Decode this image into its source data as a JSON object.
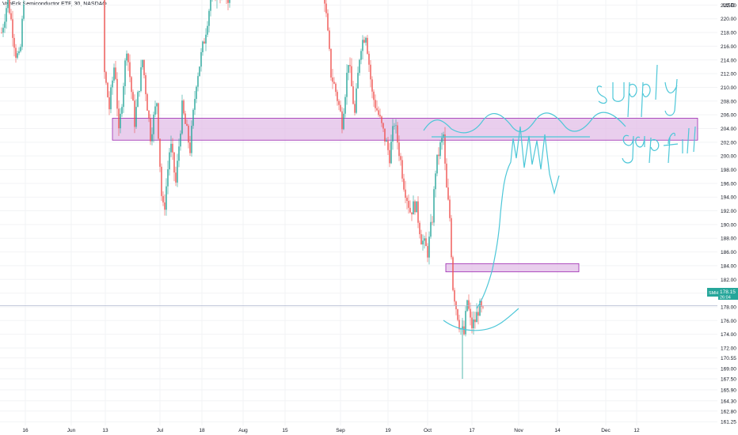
{
  "header": {
    "title": "VanEck Semiconductor ETF, 30, NASDAQ"
  },
  "price_axis": {
    "currency": "USD",
    "ticks": [
      "161.25",
      "162.80",
      "164.30",
      "165.90",
      "167.50",
      "169.00",
      "170.55",
      "172.00",
      "174.00",
      "176.00",
      "178.00",
      "180.00",
      "182.00",
      "184.00",
      "186.00",
      "188.00",
      "190.00",
      "192.00",
      "194.00",
      "196.00",
      "198.00",
      "200.00",
      "202.00",
      "204.00",
      "206.00",
      "208.00",
      "210.00",
      "212.00",
      "214.00",
      "216.00",
      "218.00",
      "220.00",
      "222.00"
    ]
  },
  "time_axis": {
    "ticks": [
      "16",
      "Jun",
      "13",
      "Jul",
      "18",
      "Aug",
      "15",
      "Sep",
      "19",
      "Oct",
      "17",
      "Nov",
      "14",
      "Dec",
      "12"
    ]
  },
  "last_price": {
    "symbol": "SMH",
    "value": "178.15",
    "countdown": "26:04"
  },
  "annotations": {
    "supply_label": "supply",
    "gap_label": "gap fill"
  },
  "colors": {
    "up": "#26a69a",
    "down": "#ef5350",
    "zone_fill": "#e1bee7",
    "zone_border": "#9c27b0",
    "drawing": "#4dc7d8",
    "badge": "#26a69a"
  },
  "chart_data": {
    "type": "candlestick",
    "title": "VanEck Semiconductor ETF, 30, NASDAQ",
    "ylim": [
      161.25,
      222.0
    ],
    "y_unit": "USD",
    "x_ticks": [
      "16",
      "Jun",
      "13",
      "Jul",
      "18",
      "Aug",
      "15",
      "Sep",
      "19",
      "Oct",
      "17",
      "Nov",
      "14",
      "Dec",
      "12"
    ],
    "price_path": [
      {
        "t": "16",
        "p": 219
      },
      {
        "t": "Jun",
        "p": 223
      },
      {
        "t": "13",
        "p": 211
      },
      {
        "t": "13",
        "p": 205
      },
      {
        "t": "Jul",
        "p": 190
      },
      {
        "t": "Jul",
        "p": 200
      },
      {
        "t": "18",
        "p": 218
      },
      {
        "t": "18",
        "p": 223
      },
      {
        "t": "Aug",
        "p": 224
      },
      {
        "t": "15",
        "p": 223
      },
      {
        "t": "Sep",
        "p": 221
      },
      {
        "t": "Sep",
        "p": 207
      },
      {
        "t": "Sep",
        "p": 218
      },
      {
        "t": "19",
        "p": 204
      },
      {
        "t": "19",
        "p": 200
      },
      {
        "t": "19",
        "p": 193
      },
      {
        "t": "Oct",
        "p": 186
      },
      {
        "t": "Oct",
        "p": 201
      },
      {
        "t": "Oct",
        "p": 193
      },
      {
        "t": "Oct",
        "p": 180
      },
      {
        "t": "Oct",
        "p": 174
      },
      {
        "t": "17",
        "p": 177
      },
      {
        "t": "17",
        "p": 178.15
      }
    ],
    "low_wick": 167.5,
    "zones": [
      {
        "name": "supply",
        "from": 202.3,
        "to": 205.5
      },
      {
        "name": "gap",
        "from": 183.1,
        "to": 184.3
      }
    ],
    "last_price": 178.15,
    "grid": true
  }
}
